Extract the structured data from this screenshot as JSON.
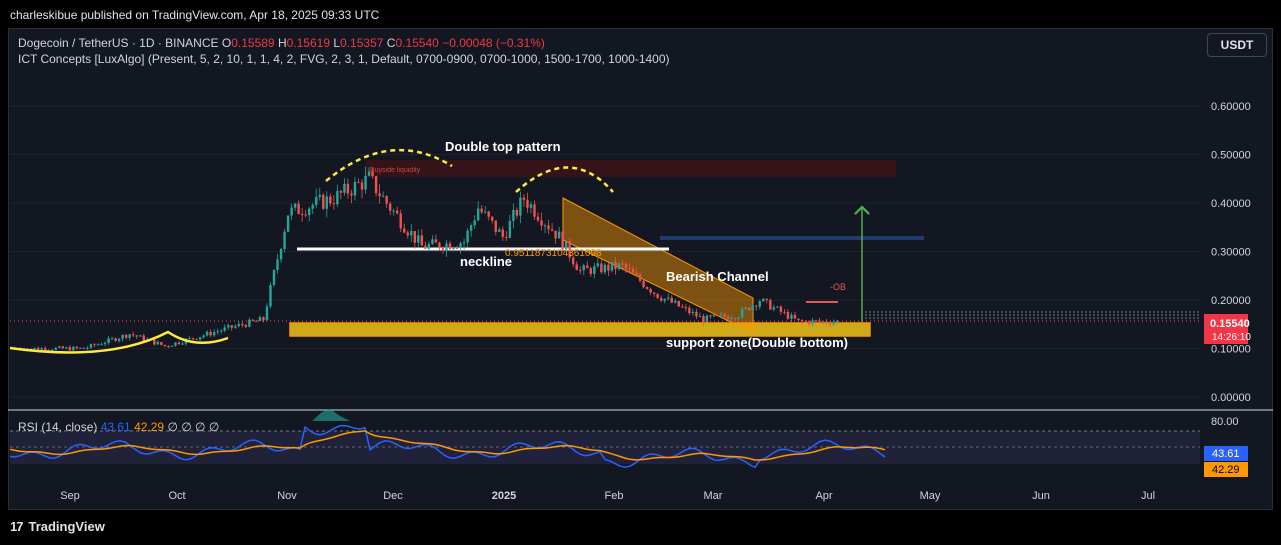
{
  "header": {
    "publisher_line": "charleskibue published on TradingView.com, Apr 18, 2025 09:33 UTC"
  },
  "legend": {
    "symbol": "Dogecoin / TetherUS · 1D · BINANCE",
    "o_label": "O",
    "o": "0.15589",
    "h_label": "H",
    "h": "0.15619",
    "l_label": "L",
    "l": "0.15357",
    "c_label": "C",
    "c": "0.15540",
    "change": "−0.00048 (−0.31%)",
    "indicator": "ICT Concepts [LuxAlgo] (Present, 5, 2, 10, 1, 1, 4, 2, FVG, 2, 3, 1, Default, 0700-0900, 0700-1000, 1500-1700, 1000-1400)"
  },
  "currency_button": "USDT",
  "annotations": {
    "double_top": "Double top pattern",
    "neckline": "neckline",
    "bearish_channel": "Bearish Channel",
    "support_zone": "support zone(Double bottom)",
    "fib_text": "0.9511873104361098",
    "buyside": "Buyside liquidity",
    "ob": "-OB"
  },
  "price_labels": {
    "last": "0.15540",
    "countdown": "14:26:10"
  },
  "rsi": {
    "title": "RSI (14, close)",
    "value": "43.61",
    "ma": "42.29",
    "extra": "∅ ∅ ∅ ∅",
    "level": "80.00"
  },
  "colors": {
    "up": "#26a69a",
    "down": "#ef5350",
    "bg": "#131722",
    "support": "#f0c419",
    "channel": "#ff9800",
    "rsi": "#2962ff",
    "rsi_ma": "#ff9800",
    "neckline": "#ffffff",
    "arrow": "#4caf50"
  },
  "chart_data": {
    "type": "candlestick",
    "symbol": "DOGEUSDT",
    "interval": "1D",
    "y_axis": {
      "ticks": [
        0.0,
        0.1,
        0.2,
        0.3,
        0.4,
        0.5,
        0.6
      ],
      "tick_labels": [
        "0.00000",
        "0.10000",
        "0.20000",
        "0.30000",
        "0.40000",
        "0.50000",
        "0.60000"
      ]
    },
    "x_axis": {
      "tick_labels": [
        "Sep",
        "Oct",
        "Nov",
        "Dec",
        "2025",
        "Feb",
        "Mar",
        "Apr",
        "May",
        "Jun",
        "Jul"
      ]
    },
    "approx_close_path": [
      [
        "2024-08-28",
        0.1
      ],
      [
        "2024-09-15",
        0.1
      ],
      [
        "2024-09-28",
        0.13
      ],
      [
        "2024-10-08",
        0.105
      ],
      [
        "2024-10-25",
        0.14
      ],
      [
        "2024-11-05",
        0.16
      ],
      [
        "2024-11-12",
        0.38
      ],
      [
        "2024-11-25",
        0.41
      ],
      [
        "2024-12-05",
        0.45
      ],
      [
        "2024-12-10",
        0.4
      ],
      [
        "2024-12-20",
        0.31
      ],
      [
        "2025-01-01",
        0.32
      ],
      [
        "2025-01-05",
        0.39
      ],
      [
        "2025-01-12",
        0.33
      ],
      [
        "2025-01-18",
        0.41
      ],
      [
        "2025-01-28",
        0.33
      ],
      [
        "2025-02-03",
        0.26
      ],
      [
        "2025-02-15",
        0.27
      ],
      [
        "2025-02-25",
        0.21
      ],
      [
        "2025-03-10",
        0.16
      ],
      [
        "2025-03-20",
        0.17
      ],
      [
        "2025-03-26",
        0.2
      ],
      [
        "2025-04-06",
        0.155
      ],
      [
        "2025-04-18",
        0.1554
      ]
    ],
    "neckline": 0.3,
    "support_zone": [
      0.125,
      0.15
    ],
    "resistance_zone": [
      0.46,
      0.49
    ],
    "rsi_series": {
      "name": "RSI (14, close)",
      "last": 43.61,
      "ma_last": 42.29
    }
  }
}
